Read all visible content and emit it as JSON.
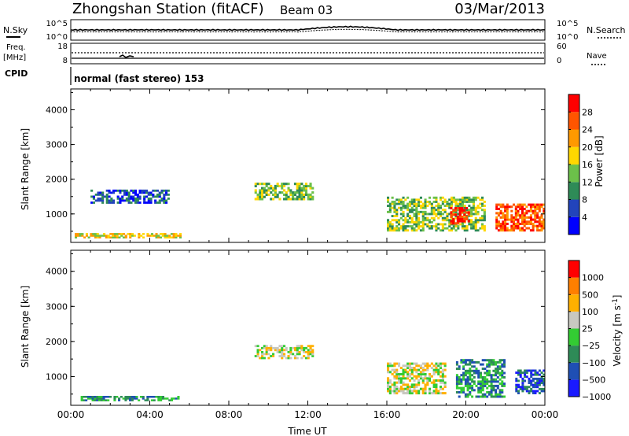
{
  "header": {
    "station": "Zhongshan Station (fitACF)",
    "beam": "Beam 03",
    "date": "03/Mar/2013"
  },
  "noise_panel": {
    "left_label": "N.Sky",
    "right_label": "N.Search",
    "left_ticks": [
      "10^5",
      "10^0"
    ],
    "right_ticks": [
      "10^5",
      "10^0"
    ]
  },
  "freq_panel": {
    "left_label_line1": "Freq.",
    "left_label_line2": "[MHz]",
    "right_label": "Nave",
    "left_ticks": [
      "18",
      "8"
    ],
    "right_ticks": [
      "60",
      "0"
    ]
  },
  "cpid_panel": {
    "label": "CPID",
    "text": "normal (fast stereo) 153"
  },
  "colors": {
    "power": [
      "#0000ff",
      "#2244bb",
      "#2e8b57",
      "#6cc04a",
      "#ffd700",
      "#ff9900",
      "#ff5500",
      "#ff0000"
    ],
    "velocity": [
      "#ff0000",
      "#ff7f00",
      "#ffb000",
      "#c8c8c0",
      "#33cc33",
      "#2e8b57",
      "#1f4fb4",
      "#1a1aff"
    ]
  },
  "chart_data": [
    {
      "type": "heatmap",
      "ylabel": "Slant Range [km]",
      "y_ticks": [
        "1000",
        "2000",
        "3000",
        "4000"
      ],
      "ylim": [
        180,
        4600
      ],
      "colorbar_label": "Power [dB]",
      "colorbar_ticks": [
        "4",
        "8",
        "12",
        "16",
        "20",
        "24",
        "28"
      ],
      "colorbar_range": [
        0,
        32
      ],
      "echo_regions_ut_km": [
        {
          "t0": 0.2,
          "t1": 5.6,
          "r0": 300,
          "r1": 450,
          "level": 4
        },
        {
          "t0": 1.0,
          "t1": 5.0,
          "r0": 1300,
          "r1": 1700,
          "level": 1
        },
        {
          "t0": 9.3,
          "t1": 12.3,
          "r0": 1400,
          "r1": 1900,
          "level": 3
        },
        {
          "t0": 16.0,
          "t1": 21.0,
          "r0": 500,
          "r1": 1500,
          "level": 3
        },
        {
          "t0": 19.2,
          "t1": 20.2,
          "r0": 700,
          "r1": 1200,
          "level": 7
        },
        {
          "t0": 21.5,
          "t1": 24.0,
          "r0": 500,
          "r1": 1300,
          "level": 6
        }
      ]
    },
    {
      "type": "heatmap",
      "ylabel": "Slant Range [km]",
      "y_ticks": [
        "1000",
        "2000",
        "3000",
        "4000"
      ],
      "ylim": [
        180,
        4600
      ],
      "xlabel": "Time UT",
      "x_ticks": [
        "00:00",
        "04:00",
        "08:00",
        "12:00",
        "16:00",
        "20:00",
        "00:00"
      ],
      "xlim": [
        0,
        24
      ],
      "colorbar_label": "Velocity [m s^-1]",
      "colorbar_ticks": [
        "1000",
        "500",
        "100",
        "25",
        "−25",
        "−100",
        "−500",
        "−1000"
      ],
      "echo_regions_ut_km": [
        {
          "t0": 0.5,
          "t1": 5.5,
          "r0": 300,
          "r1": 450,
          "level": 5
        },
        {
          "t0": 9.3,
          "t1": 12.3,
          "r0": 1500,
          "r1": 1900,
          "level": 3
        },
        {
          "t0": 16.0,
          "t1": 19.0,
          "r0": 500,
          "r1": 1400,
          "level": 3
        },
        {
          "t0": 19.5,
          "t1": 22.0,
          "r0": 400,
          "r1": 1500,
          "level": 5
        },
        {
          "t0": 22.5,
          "t1": 24.0,
          "r0": 500,
          "r1": 1200,
          "level": 6
        }
      ]
    }
  ]
}
